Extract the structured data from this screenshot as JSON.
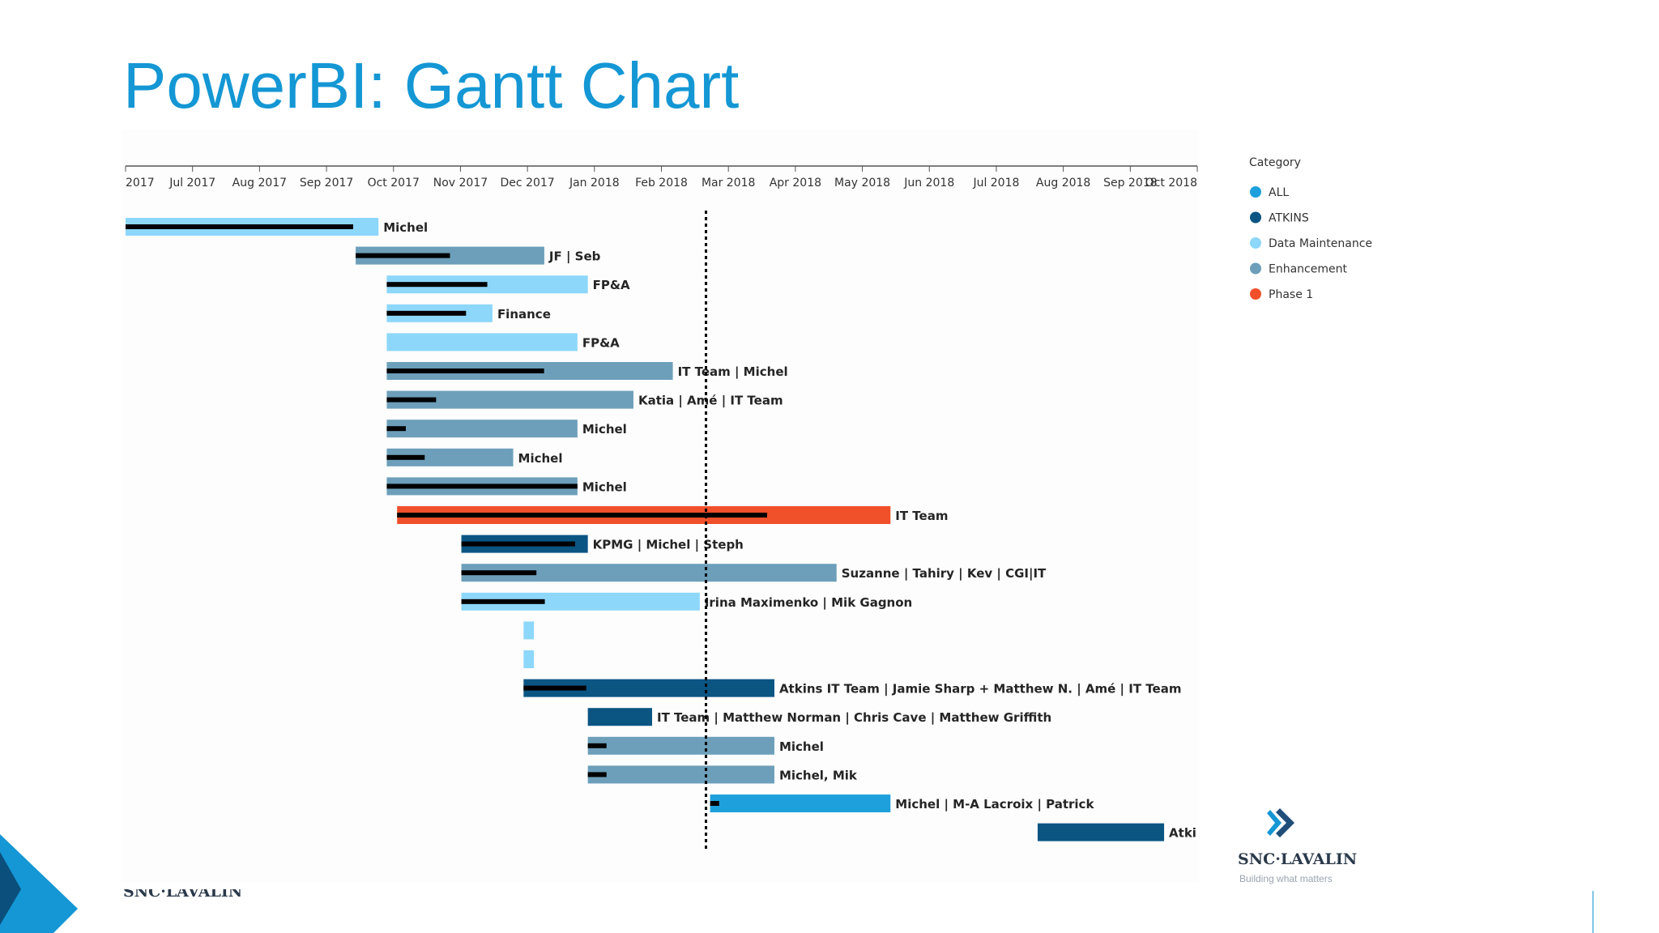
{
  "slide": {
    "title": "PowerBI: Gantt Chart",
    "footer_wordmark": "SNC·LAVALIN"
  },
  "logo": {
    "wordmark": "SNC·LAVALIN",
    "tagline": "Building what matters",
    "icon": "snc-lavalin-chevrons-icon"
  },
  "colors": {
    "title": "#1497d4",
    "all": "#1ea0dc",
    "atkins": "#0b5583",
    "data_maintenance": "#8dd7fb",
    "enhancement": "#6d9fba",
    "phase1": "#f0502a",
    "progress": "#000000"
  },
  "chart_data": {
    "type": "gantt",
    "x_axis_labels": [
      "2017",
      "Jul 2017",
      "Aug 2017",
      "Sep 2017",
      "Oct 2017",
      "Nov 2017",
      "Dec 2017",
      "Jan 2018",
      "Feb 2018",
      "Mar 2018",
      "Apr 2018",
      "May 2018",
      "Jun 2018",
      "Jul 2018",
      "Aug 2018",
      "Sep 2018",
      "Oct 2018"
    ],
    "x_range": [
      "2017-06-01",
      "2018-10-31"
    ],
    "today_marker": "2018-03-08",
    "legend": {
      "title": "Category",
      "position": "right",
      "items": [
        {
          "key": "ALL",
          "label": "ALL",
          "color": "#1ea0dc"
        },
        {
          "key": "ATKINS",
          "label": "ATKINS",
          "color": "#0b5583"
        },
        {
          "key": "Data Maintenance",
          "label": "Data Maintenance",
          "color": "#8dd7fb"
        },
        {
          "key": "Enhancement",
          "label": "Enhancement",
          "color": "#6d9fba"
        },
        {
          "key": "Phase 1",
          "label": "Phase 1",
          "color": "#f0502a"
        }
      ]
    },
    "tasks": [
      {
        "start": "2017-06-01",
        "end": "2017-10-01",
        "category": "Data Maintenance",
        "progress": 0.9,
        "resource": "Michel"
      },
      {
        "start": "2017-09-20",
        "end": "2017-12-20",
        "category": "Enhancement",
        "progress": 0.5,
        "resource": "JF | Seb"
      },
      {
        "start": "2017-10-05",
        "end": "2018-01-10",
        "category": "Data Maintenance",
        "progress": 0.5,
        "resource": "FP&A"
      },
      {
        "start": "2017-10-05",
        "end": "2017-11-25",
        "category": "Data Maintenance",
        "progress": 0.75,
        "resource": "Finance"
      },
      {
        "start": "2017-10-05",
        "end": "2018-01-05",
        "category": "Data Maintenance",
        "progress": 0,
        "resource": "FP&A"
      },
      {
        "start": "2017-10-05",
        "end": "2018-02-20",
        "category": "Enhancement",
        "progress": 0.55,
        "resource": "IT Team | Michel"
      },
      {
        "start": "2017-10-05",
        "end": "2018-02-01",
        "category": "Enhancement",
        "progress": 0.2,
        "resource": "Katia | Amé | IT Team"
      },
      {
        "start": "2017-10-05",
        "end": "2018-01-05",
        "category": "Enhancement",
        "progress": 0.1,
        "resource": "Michel"
      },
      {
        "start": "2017-10-05",
        "end": "2017-12-05",
        "category": "Enhancement",
        "progress": 0.3,
        "resource": "Michel"
      },
      {
        "start": "2017-10-05",
        "end": "2018-01-05",
        "category": "Enhancement",
        "progress": 1,
        "resource": "Michel"
      },
      {
        "start": "2017-10-10",
        "end": "2018-06-05",
        "category": "Phase 1",
        "progress": 0.75,
        "resource": "IT Team"
      },
      {
        "start": "2017-11-10",
        "end": "2018-01-10",
        "category": "ATKINS",
        "progress": 0.9,
        "resource": "KPMG | Michel | Steph"
      },
      {
        "start": "2017-11-10",
        "end": "2018-05-10",
        "category": "Enhancement",
        "progress": 0.2,
        "resource": "Suzanne | Tahiry | Kev | CGI|IT"
      },
      {
        "start": "2017-11-10",
        "end": "2018-03-05",
        "category": "Data Maintenance",
        "progress": 0.35,
        "resource": "Irina Maximenko | Mik Gagnon"
      },
      {
        "start": "2017-12-10",
        "end": "2017-12-15",
        "category": "Data Maintenance",
        "progress": 0,
        "resource": ""
      },
      {
        "start": "2017-12-10",
        "end": "2017-12-15",
        "category": "Data Maintenance",
        "progress": 0,
        "resource": ""
      },
      {
        "start": "2017-12-10",
        "end": "2018-04-10",
        "category": "ATKINS",
        "progress": 0.25,
        "resource": "Atkins IT Team | Jamie Sharp + Matthew N. | Amé | IT Team"
      },
      {
        "start": "2018-01-10",
        "end": "2018-02-10",
        "category": "ATKINS",
        "progress": 0,
        "resource": "IT Team | Matthew Norman | Chris Cave | Matthew Griffith"
      },
      {
        "start": "2018-01-10",
        "end": "2018-04-10",
        "category": "Enhancement",
        "progress": 0.1,
        "resource": "Michel"
      },
      {
        "start": "2018-01-10",
        "end": "2018-04-10",
        "category": "Enhancement",
        "progress": 0.1,
        "resource": "Michel, Mik"
      },
      {
        "start": "2018-03-10",
        "end": "2018-06-05",
        "category": "ALL",
        "progress": 0.05,
        "resource": "Michel | M-A Lacroix | Patrick"
      },
      {
        "start": "2018-08-15",
        "end": "2018-10-15",
        "category": "ATKINS",
        "progress": 0,
        "resource": "Atki"
      }
    ]
  }
}
